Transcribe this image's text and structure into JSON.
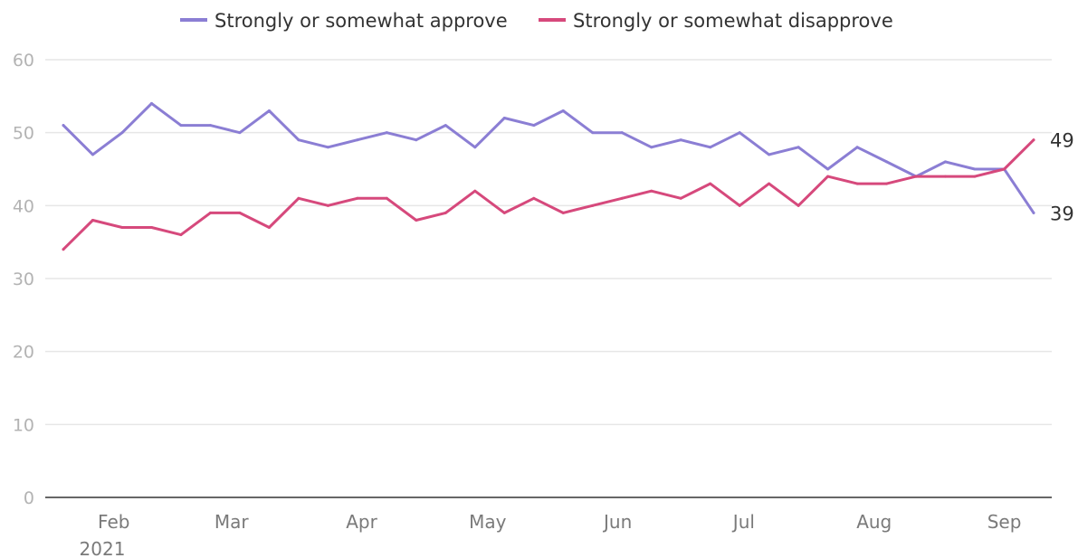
{
  "chart_data": {
    "type": "line",
    "title": "",
    "xlabel": "",
    "ylabel": "",
    "ylim": [
      0,
      60
    ],
    "y_ticks": [
      "0",
      "10",
      "20",
      "30",
      "40",
      "50",
      "60"
    ],
    "x_ticks": [
      "Feb",
      "Mar",
      "Apr",
      "May",
      "Jun",
      "Jul",
      "Aug",
      "Sep"
    ],
    "x_year_label": "2021",
    "grid": true,
    "legend_position": "top",
    "x": [
      "2021-01-23",
      "2021-01-30",
      "2021-02-06",
      "2021-02-13",
      "2021-02-20",
      "2021-02-27",
      "2021-03-06",
      "2021-03-13",
      "2021-03-20",
      "2021-03-27",
      "2021-04-03",
      "2021-04-10",
      "2021-04-17",
      "2021-04-24",
      "2021-05-01",
      "2021-05-08",
      "2021-05-15",
      "2021-05-22",
      "2021-05-29",
      "2021-06-05",
      "2021-06-12",
      "2021-06-19",
      "2021-06-26",
      "2021-07-03",
      "2021-07-10",
      "2021-07-17",
      "2021-07-24",
      "2021-07-31",
      "2021-08-07",
      "2021-08-14",
      "2021-08-21",
      "2021-08-28",
      "2021-09-04",
      "2021-09-11"
    ],
    "series": [
      {
        "name": "Strongly or somewhat approve",
        "color": "#8b7ed4",
        "end_label": "39",
        "values": [
          51,
          47,
          50,
          54,
          51,
          51,
          50,
          53,
          49,
          48,
          49,
          50,
          49,
          51,
          48,
          52,
          51,
          53,
          50,
          50,
          48,
          49,
          48,
          50,
          47,
          48,
          45,
          48,
          46,
          44,
          46,
          45,
          45,
          39
        ]
      },
      {
        "name": "Strongly or somewhat disapprove",
        "color": "#d6497c",
        "end_label": "49",
        "values": [
          34,
          38,
          37,
          37,
          36,
          39,
          39,
          37,
          41,
          40,
          41,
          41,
          38,
          39,
          42,
          39,
          41,
          39,
          40,
          41,
          42,
          41,
          43,
          40,
          43,
          40,
          44,
          43,
          43,
          44,
          44,
          44,
          45,
          49
        ]
      }
    ]
  }
}
